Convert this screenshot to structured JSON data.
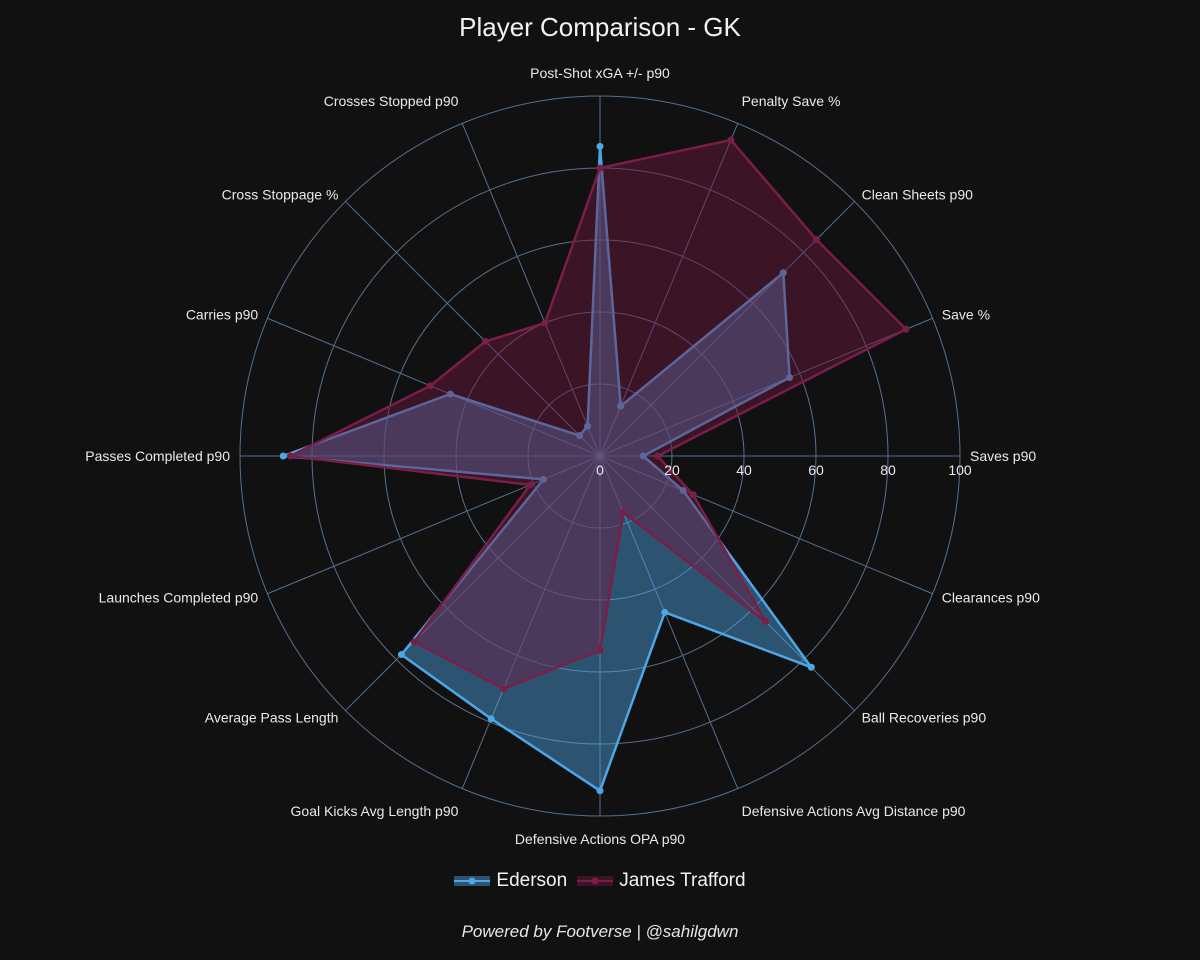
{
  "title": "Player Comparison - GK",
  "footer": "Powered by Footverse | @sahilgdwn",
  "chart_data": {
    "type": "radar",
    "title": "Player Comparison - GK",
    "radial_range": [
      0,
      100
    ],
    "radial_ticks": [
      "0",
      "20",
      "40",
      "60",
      "80",
      "100"
    ],
    "axes": [
      "Saves p90",
      "Save %",
      "Clean Sheets p90",
      "Penalty Save %",
      "Post-Shot xGA +/- p90",
      "Crosses Stopped p90",
      "Cross Stoppage %",
      "Carries p90",
      "Passes Completed p90",
      "Launches Completed p90",
      "Average Pass Length",
      "Goal Kicks Avg Length p90",
      "Defensive Actions OPA p90",
      "Defensive Actions Avg Distance p90",
      "Ball Recoveries p90",
      "Clearances p90"
    ],
    "series": [
      {
        "name": "Ederson",
        "color": "#4ea6e6",
        "fill": "rgba(78,166,230,0.45)",
        "values": [
          12,
          57,
          72,
          15,
          86,
          9,
          8,
          45,
          88,
          17,
          78,
          79,
          93,
          47,
          83,
          25
        ]
      },
      {
        "name": "James Trafford",
        "color": "#7a1e48",
        "fill": "rgba(110,24,64,0.45)",
        "values": [
          16,
          92,
          85,
          95,
          80,
          40,
          45,
          51,
          86,
          21,
          73,
          70,
          54,
          17,
          65,
          28
        ]
      }
    ],
    "legend_position": "bottom-center",
    "grid": true
  }
}
